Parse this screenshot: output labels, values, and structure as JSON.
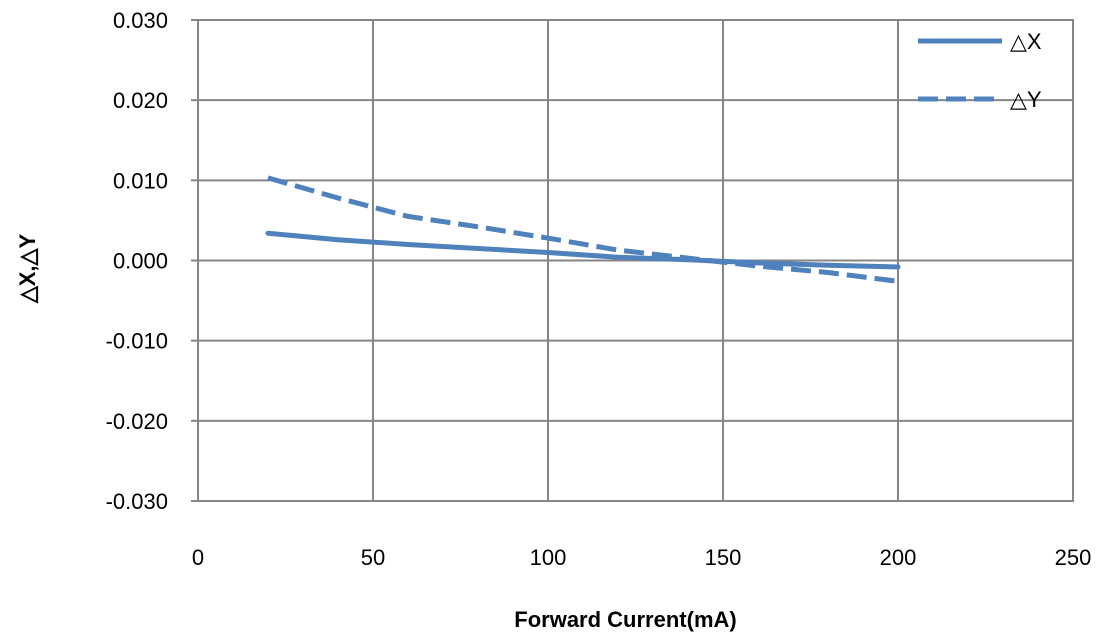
{
  "chart_data": {
    "type": "line",
    "title": "",
    "xlabel": "Forward Current(mA)",
    "ylabel": "△X,△Y",
    "xlim": [
      0,
      250
    ],
    "ylim": [
      -0.03,
      0.03
    ],
    "x_ticks": [
      "0",
      "50",
      "100",
      "150",
      "200",
      "250"
    ],
    "y_ticks": [
      "0.030",
      "0.020",
      "0.010",
      "0.000",
      "-0.010",
      "-0.020",
      "-0.030"
    ],
    "x_tick_values": [
      0,
      50,
      100,
      150,
      200,
      250
    ],
    "y_tick_values": [
      0.03,
      0.02,
      0.01,
      0.0,
      -0.01,
      -0.02,
      -0.03
    ],
    "grid": true,
    "legend_position": "top-right",
    "series": [
      {
        "name": "△X",
        "style": "solid",
        "color": "#4f81bd",
        "x": [
          20,
          40,
          60,
          80,
          100,
          120,
          140,
          160,
          180,
          200
        ],
        "y": [
          0.0034,
          0.0026,
          0.002,
          0.0015,
          0.001,
          0.0004,
          0.0001,
          -0.0003,
          -0.0006,
          -0.0008
        ]
      },
      {
        "name": "△Y",
        "style": "dashed",
        "color": "#4f81bd",
        "x": [
          20,
          40,
          60,
          80,
          100,
          120,
          140,
          160,
          180,
          200
        ],
        "y": [
          0.0103,
          0.0078,
          0.0055,
          0.0042,
          0.0028,
          0.0013,
          0.0003,
          -0.0007,
          -0.0015,
          -0.0026
        ]
      }
    ]
  }
}
